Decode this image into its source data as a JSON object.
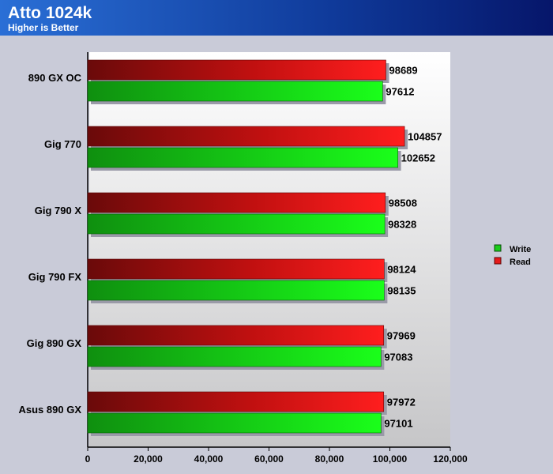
{
  "chart_data": {
    "type": "bar",
    "orientation": "horizontal",
    "title": "Atto 1024k",
    "subtitle": "Higher is Better",
    "categories": [
      "890 GX OC",
      "Gig 770",
      "Gig 790 X",
      "Gig 790 FX",
      "Gig 890 GX",
      "Asus 890 GX"
    ],
    "series": [
      {
        "name": "Read",
        "values": [
          98689,
          104857,
          98508,
          98124,
          97969,
          97972
        ],
        "color": "#e61a1a"
      },
      {
        "name": "Write",
        "values": [
          97612,
          102652,
          98328,
          98135,
          97083,
          97101
        ],
        "color": "#1acc1a"
      }
    ],
    "legend_order": [
      "Write",
      "Read"
    ],
    "xlim": [
      0,
      120000
    ],
    "xticks": [
      "0",
      "20,000",
      "40,000",
      "60,000",
      "80,000",
      "100,000",
      "120,000"
    ],
    "legend_position": "right",
    "grid": false
  }
}
